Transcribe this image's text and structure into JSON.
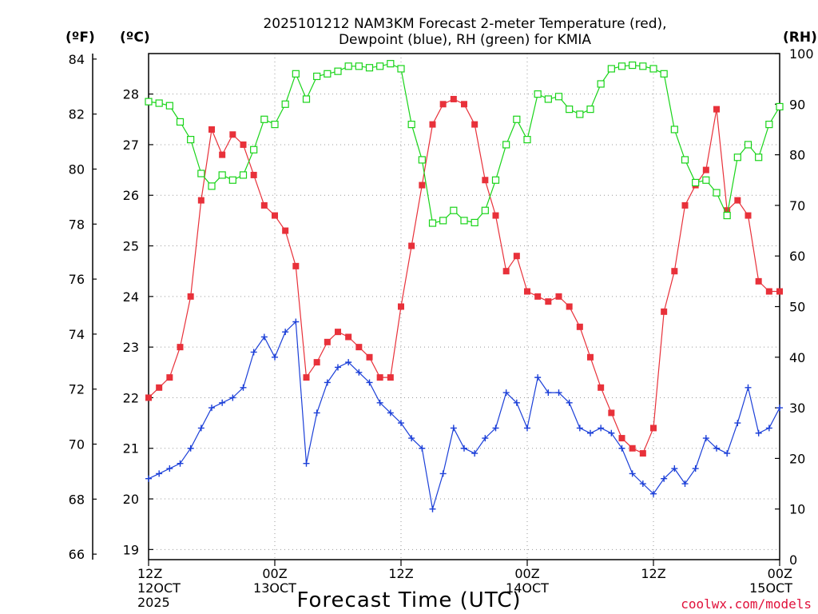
{
  "title_line1": "2025101212 NAM3KM Forecast 2-meter Temperature (red),",
  "title_line2": "Dewpoint (blue), RH (green) for KMIA",
  "units": {
    "fahrenheit": "(ºF)",
    "celsius": "(ºC)",
    "rh": "(RH)"
  },
  "xlabel": "Forecast Time (UTC)",
  "credit": "coolwx.com/models",
  "x_ticks": [
    {
      "hour": 0,
      "line1": "12Z",
      "line2": "12OCT",
      "line3": "2025"
    },
    {
      "hour": 12,
      "line1": "00Z",
      "line2": "13OCT",
      "line3": ""
    },
    {
      "hour": 24,
      "line1": "12Z",
      "line2": "",
      "line3": ""
    },
    {
      "hour": 36,
      "line1": "00Z",
      "line2": "14OCT",
      "line3": ""
    },
    {
      "hour": 48,
      "line1": "12Z",
      "line2": "",
      "line3": ""
    },
    {
      "hour": 60,
      "line1": "00Z",
      "line2": "15OCT",
      "line3": ""
    }
  ],
  "f_ticks": [
    "66",
    "68",
    "70",
    "72",
    "74",
    "76",
    "78",
    "80",
    "82",
    "84"
  ],
  "c_ticks": [
    "19",
    "20",
    "21",
    "22",
    "23",
    "24",
    "25",
    "26",
    "27",
    "28"
  ],
  "rh_ticks": [
    "0",
    "10",
    "20",
    "30",
    "40",
    "50",
    "60",
    "70",
    "80",
    "90",
    "100"
  ],
  "colors": {
    "temperature": "#e8313a",
    "dewpoint": "#1b3fd8",
    "rh": "#19d419"
  },
  "chart_data": {
    "type": "line",
    "title": "2025101212 NAM3KM Forecast 2-meter Temperature (red), Dewpoint (blue), RH (green) for KMIA",
    "xlabel": "Forecast Time (UTC)",
    "ylabel_left_outer": "(ºF)",
    "ylabel_left_inner": "(ºC)",
    "ylabel_right": "(RH)",
    "x_unit": "forecast hour (0 = 12Z 12OCT 2025, one point per hour)",
    "xlim": [
      0,
      60
    ],
    "ylim_celsius": [
      18.8,
      28.8
    ],
    "ylim_fahrenheit": [
      65.8,
      84.2
    ],
    "ylim_rh": [
      0,
      100
    ],
    "x": [
      0,
      1,
      2,
      3,
      4,
      5,
      6,
      7,
      8,
      9,
      10,
      11,
      12,
      13,
      14,
      15,
      16,
      17,
      18,
      19,
      20,
      21,
      22,
      23,
      24,
      25,
      26,
      27,
      28,
      29,
      30,
      31,
      32,
      33,
      34,
      35,
      36,
      37,
      38,
      39,
      40,
      41,
      42,
      43,
      44,
      45,
      46,
      47,
      48,
      49,
      50,
      51,
      52,
      53,
      54,
      55,
      56,
      57,
      58,
      59,
      60
    ],
    "series": [
      {
        "name": "Temperature (°C)",
        "axis": "celsius",
        "marker": "filled-square",
        "values": [
          22.0,
          22.2,
          22.4,
          23.0,
          24.0,
          25.9,
          27.3,
          26.8,
          27.2,
          27.0,
          26.4,
          25.8,
          25.6,
          25.3,
          24.6,
          22.4,
          22.7,
          23.1,
          23.3,
          23.2,
          23.0,
          22.8,
          22.4,
          22.4,
          23.8,
          25.0,
          26.2,
          27.4,
          27.8,
          27.9,
          27.8,
          27.4,
          26.3,
          25.6,
          24.5,
          24.8,
          24.1,
          24.0,
          23.9,
          24.0,
          23.8,
          23.4,
          22.8,
          22.2,
          21.7,
          21.2,
          21.0,
          20.9,
          21.4,
          23.7,
          24.5,
          25.8,
          26.2,
          26.5,
          27.7,
          25.7,
          25.9,
          25.6,
          24.3,
          24.1,
          24.1
        ]
      },
      {
        "name": "Dewpoint (°C)",
        "axis": "celsius",
        "marker": "plus",
        "values": [
          20.4,
          20.5,
          20.6,
          20.7,
          21.0,
          21.4,
          21.8,
          21.9,
          22.0,
          22.2,
          22.9,
          23.2,
          22.8,
          23.3,
          23.5,
          20.7,
          21.7,
          22.3,
          22.6,
          22.7,
          22.5,
          22.3,
          21.9,
          21.7,
          21.5,
          21.2,
          21.0,
          19.8,
          20.5,
          21.4,
          21.0,
          20.9,
          21.2,
          21.4,
          22.1,
          21.9,
          21.4,
          22.4,
          22.1,
          22.1,
          21.9,
          21.4,
          21.3,
          21.4,
          21.3,
          21.0,
          20.5,
          20.3,
          20.1,
          20.4,
          20.6,
          20.3,
          20.6,
          21.2,
          21.0,
          20.9,
          21.5,
          22.2,
          21.3,
          21.4,
          21.8
        ]
      },
      {
        "name": "RH (%)",
        "axis": "rh",
        "marker": "open-square",
        "values": [
          90.5,
          90.2,
          89.7,
          86.5,
          83,
          76.3,
          73.8,
          76,
          75,
          76,
          81,
          87,
          86,
          90,
          96,
          91,
          95.5,
          96,
          96.5,
          97.5,
          97.5,
          97.2,
          97.5,
          98,
          97,
          86,
          79,
          66.5,
          67,
          69,
          67,
          66.6,
          69,
          75,
          82,
          87,
          83,
          92,
          91,
          91.5,
          89,
          88,
          89,
          94,
          97,
          97.5,
          97.7,
          97.5,
          97,
          96,
          85,
          79,
          74.5,
          75,
          72.5,
          68,
          79.5,
          82,
          79.5,
          86,
          89.5
        ]
      }
    ]
  }
}
